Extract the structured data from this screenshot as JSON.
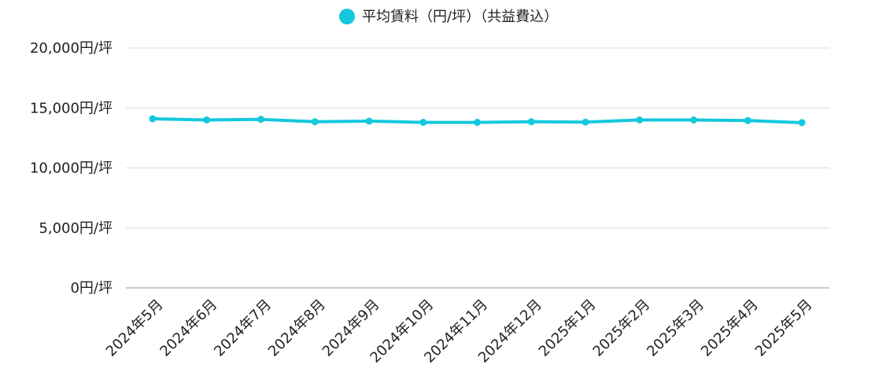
{
  "chart_data": {
    "type": "line",
    "title": "",
    "xlabel": "",
    "ylabel": "",
    "categories": [
      "2024年5月",
      "2024年6月",
      "2024年7月",
      "2024年8月",
      "2024年9月",
      "2024年10月",
      "2024年11月",
      "2024年12月",
      "2025年1月",
      "2025年2月",
      "2025年3月",
      "2025年4月",
      "2025年5月"
    ],
    "series": [
      {
        "name": "平均賃料（円/坪）（共益費込）",
        "color": "#14c8dd",
        "values": [
          14100,
          14000,
          14050,
          13850,
          13900,
          13800,
          13800,
          13850,
          13820,
          14000,
          14000,
          13950,
          13780
        ]
      }
    ],
    "ylim": [
      0,
      20000
    ],
    "y_ticks": [
      0,
      5000,
      10000,
      15000,
      20000
    ],
    "y_tick_labels": [
      "0円/坪",
      "5,000円/坪",
      "10,000円/坪",
      "15,000円/坪",
      "20,000円/坪"
    ],
    "grid": true,
    "legend_position": "top-center"
  }
}
